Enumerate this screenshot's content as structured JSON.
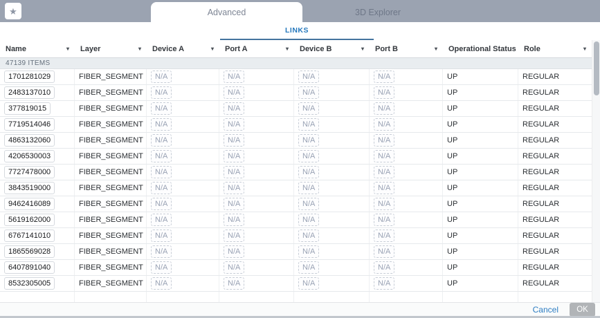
{
  "tabs": {
    "advanced": "Advanced",
    "explorer": "3D Explorer"
  },
  "subtab": {
    "label": "LINKS"
  },
  "icons": {
    "star": "★",
    "dropdown_arrow": "▾"
  },
  "table": {
    "columns": [
      "Name",
      "Layer",
      "Device A",
      "Port A",
      "Device B",
      "Port B",
      "Operational Status",
      "Role"
    ],
    "items_count": "47139 ITEMS",
    "rows": [
      {
        "name": "1701281029",
        "layer": "FIBER_SEGMENT",
        "device_a": "N/A",
        "port_a": "N/A",
        "device_b": "N/A",
        "port_b": "N/A",
        "operational_status": "UP",
        "role": "REGULAR"
      },
      {
        "name": "2483137010",
        "layer": "FIBER_SEGMENT",
        "device_a": "N/A",
        "port_a": "N/A",
        "device_b": "N/A",
        "port_b": "N/A",
        "operational_status": "UP",
        "role": "REGULAR"
      },
      {
        "name": "377819015",
        "layer": "FIBER_SEGMENT",
        "device_a": "N/A",
        "port_a": "N/A",
        "device_b": "N/A",
        "port_b": "N/A",
        "operational_status": "UP",
        "role": "REGULAR"
      },
      {
        "name": "7719514046",
        "layer": "FIBER_SEGMENT",
        "device_a": "N/A",
        "port_a": "N/A",
        "device_b": "N/A",
        "port_b": "N/A",
        "operational_status": "UP",
        "role": "REGULAR"
      },
      {
        "name": "4863132060",
        "layer": "FIBER_SEGMENT",
        "device_a": "N/A",
        "port_a": "N/A",
        "device_b": "N/A",
        "port_b": "N/A",
        "operational_status": "UP",
        "role": "REGULAR"
      },
      {
        "name": "4206530003",
        "layer": "FIBER_SEGMENT",
        "device_a": "N/A",
        "port_a": "N/A",
        "device_b": "N/A",
        "port_b": "N/A",
        "operational_status": "UP",
        "role": "REGULAR"
      },
      {
        "name": "7727478000",
        "layer": "FIBER_SEGMENT",
        "device_a": "N/A",
        "port_a": "N/A",
        "device_b": "N/A",
        "port_b": "N/A",
        "operational_status": "UP",
        "role": "REGULAR"
      },
      {
        "name": "3843519000",
        "layer": "FIBER_SEGMENT",
        "device_a": "N/A",
        "port_a": "N/A",
        "device_b": "N/A",
        "port_b": "N/A",
        "operational_status": "UP",
        "role": "REGULAR"
      },
      {
        "name": "9462416089",
        "layer": "FIBER_SEGMENT",
        "device_a": "N/A",
        "port_a": "N/A",
        "device_b": "N/A",
        "port_b": "N/A",
        "operational_status": "UP",
        "role": "REGULAR"
      },
      {
        "name": "5619162000",
        "layer": "FIBER_SEGMENT",
        "device_a": "N/A",
        "port_a": "N/A",
        "device_b": "N/A",
        "port_b": "N/A",
        "operational_status": "UP",
        "role": "REGULAR"
      },
      {
        "name": "6767141010",
        "layer": "FIBER_SEGMENT",
        "device_a": "N/A",
        "port_a": "N/A",
        "device_b": "N/A",
        "port_b": "N/A",
        "operational_status": "UP",
        "role": "REGULAR"
      },
      {
        "name": "1865569028",
        "layer": "FIBER_SEGMENT",
        "device_a": "N/A",
        "port_a": "N/A",
        "device_b": "N/A",
        "port_b": "N/A",
        "operational_status": "UP",
        "role": "REGULAR"
      },
      {
        "name": "6407891040",
        "layer": "FIBER_SEGMENT",
        "device_a": "N/A",
        "port_a": "N/A",
        "device_b": "N/A",
        "port_b": "N/A",
        "operational_status": "UP",
        "role": "REGULAR"
      },
      {
        "name": "8532305005",
        "layer": "FIBER_SEGMENT",
        "device_a": "N/A",
        "port_a": "N/A",
        "device_b": "N/A",
        "port_b": "N/A",
        "operational_status": "UP",
        "role": "REGULAR"
      }
    ]
  },
  "footer": {
    "cancel_label": "Cancel",
    "ok_label": "OK"
  },
  "colors": {
    "tabbar_gray": "#9ba3b1",
    "links_blue": "#2679bd",
    "underline_blue": "#44749f",
    "cancel_blue": "#2d7dc3",
    "ok_gray": "#b1b4b7"
  }
}
